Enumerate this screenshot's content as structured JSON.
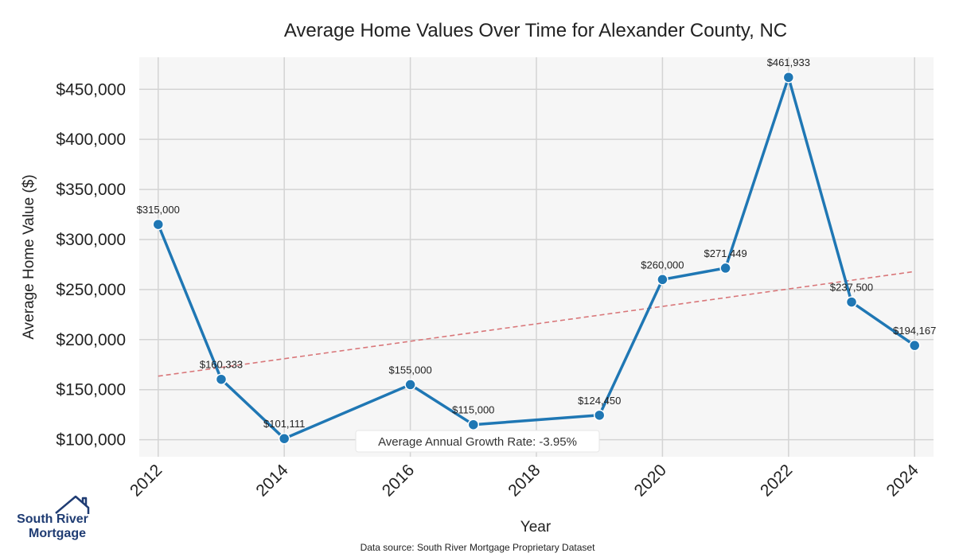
{
  "chart_data": {
    "type": "line",
    "title": "Average Home Values Over Time for Alexander County, NC",
    "xlabel": "Year",
    "ylabel": "Average Home Value ($)",
    "xlim": [
      2011.7,
      2024.3
    ],
    "ylim": [
      83000,
      482000
    ],
    "x_ticks": [
      2012,
      2014,
      2016,
      2018,
      2020,
      2022,
      2024
    ],
    "y_ticks": [
      {
        "value": 100000,
        "label": "$100,000"
      },
      {
        "value": 150000,
        "label": "$150,000"
      },
      {
        "value": 200000,
        "label": "$200,000"
      },
      {
        "value": 250000,
        "label": "$250,000"
      },
      {
        "value": 300000,
        "label": "$300,000"
      },
      {
        "value": 350000,
        "label": "$350,000"
      },
      {
        "value": 400000,
        "label": "$400,000"
      },
      {
        "value": 450000,
        "label": "$450,000"
      }
    ],
    "grid": true,
    "series": [
      {
        "color": "#1f77b4",
        "points": [
          {
            "x": 2012,
            "y": 315000,
            "label": "$315,000"
          },
          {
            "x": 2013,
            "y": 160333,
            "label": "$160,333"
          },
          {
            "x": 2014,
            "y": 101111,
            "label": "$101,111"
          },
          {
            "x": 2016,
            "y": 155000,
            "label": "$155,000"
          },
          {
            "x": 2017,
            "y": 115000,
            "label": "$115,000"
          },
          {
            "x": 2019,
            "y": 124450,
            "label": "$124,450"
          },
          {
            "x": 2020,
            "y": 260000,
            "label": "$260,000"
          },
          {
            "x": 2021,
            "y": 271449,
            "label": "$271,449"
          },
          {
            "x": 2022,
            "y": 461933,
            "label": "$461,933"
          },
          {
            "x": 2023,
            "y": 237500,
            "label": "$237,500"
          },
          {
            "x": 2024,
            "y": 194167,
            "label": "$194,167"
          }
        ]
      }
    ],
    "trendline": {
      "style": "dashed",
      "color": "#d9777a",
      "x": [
        2012,
        2024
      ],
      "y": [
        163500,
        268000
      ]
    },
    "annotation": "Average Annual Growth Rate: -3.95%",
    "colors": {
      "plot_background": "#f6f6f6",
      "grid": "#d4d4d4",
      "line": "#1f77b4",
      "trend": "#d9777a"
    }
  },
  "footer": {
    "source": "Data source: South River Mortgage Proprietary Dataset"
  },
  "logo": {
    "line1": "South River",
    "line2": "Mortgage",
    "icon": "house-icon"
  }
}
